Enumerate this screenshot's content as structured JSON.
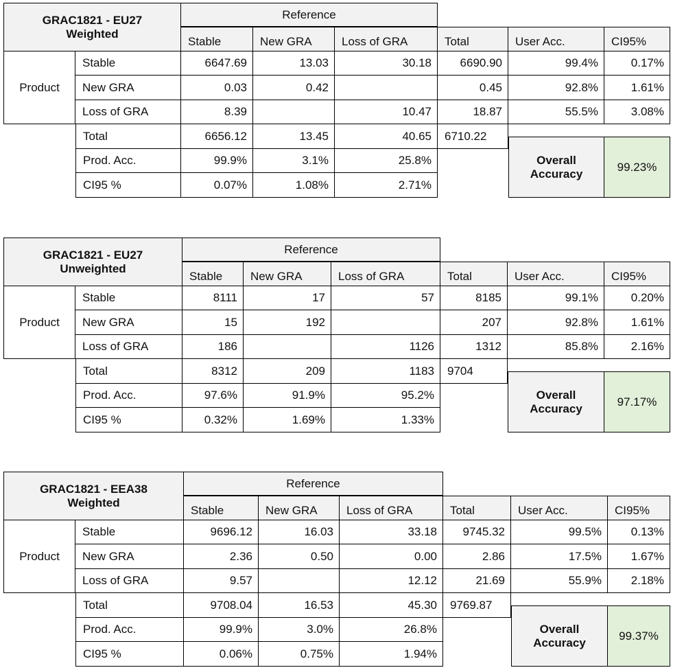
{
  "labels": {
    "reference": "Reference",
    "product": "Product",
    "columns": [
      "Stable",
      "New GRA",
      "Loss of GRA",
      "Total",
      "User Acc.",
      "CI95%"
    ],
    "rows": [
      "Stable",
      "New GRA",
      "Loss of GRA"
    ],
    "total": "Total",
    "prod_acc": "Prod. Acc.",
    "ci95_row": "CI95 %",
    "overall_line1": "Overall",
    "overall_line2": "Accuracy"
  },
  "matrices": [
    {
      "title_line1": "GRAC1821 - EU27",
      "title_line2": "Weighted",
      "rows": [
        [
          "6647.69",
          "13.03",
          "30.18",
          "6690.90",
          "99.4%",
          "0.17%"
        ],
        [
          "0.03",
          "0.42",
          "",
          "0.45",
          "92.8%",
          "1.61%"
        ],
        [
          "8.39",
          "",
          "10.47",
          "18.87",
          "55.5%",
          "3.08%"
        ]
      ],
      "total": [
        "6656.12",
        "13.45",
        "40.65",
        "6710.22"
      ],
      "prod_acc": [
        "99.9%",
        "3.1%",
        "25.8%"
      ],
      "ci95": [
        "0.07%",
        "1.08%",
        "2.71%"
      ],
      "overall": "99.23%"
    },
    {
      "title_line1": "GRAC1821 - EU27",
      "title_line2": "Unweighted",
      "rows": [
        [
          "8111",
          "17",
          "57",
          "8185",
          "99.1%",
          "0.20%"
        ],
        [
          "15",
          "192",
          "",
          "207",
          "92.8%",
          "1.61%"
        ],
        [
          "186",
          "",
          "1126",
          "1312",
          "85.8%",
          "2.16%"
        ]
      ],
      "total": [
        "8312",
        "209",
        "1183",
        "9704"
      ],
      "prod_acc": [
        "97.6%",
        "91.9%",
        "95.2%"
      ],
      "ci95": [
        "0.32%",
        "1.69%",
        "1.33%"
      ],
      "overall": "97.17%"
    },
    {
      "title_line1": "GRAC1821 - EEA38",
      "title_line2": "Weighted",
      "rows": [
        [
          "9696.12",
          "16.03",
          "33.18",
          "9745.32",
          "99.5%",
          "0.13%"
        ],
        [
          "2.36",
          "0.50",
          "0.00",
          "2.86",
          "17.5%",
          "1.67%"
        ],
        [
          "9.57",
          "",
          "12.12",
          "21.69",
          "55.9%",
          "2.18%"
        ]
      ],
      "total": [
        "9708.04",
        "16.53",
        "45.30",
        "9769.87"
      ],
      "prod_acc": [
        "99.9%",
        "3.0%",
        "26.8%"
      ],
      "ci95": [
        "0.06%",
        "0.75%",
        "1.94%"
      ],
      "overall": "99.37%"
    }
  ]
}
